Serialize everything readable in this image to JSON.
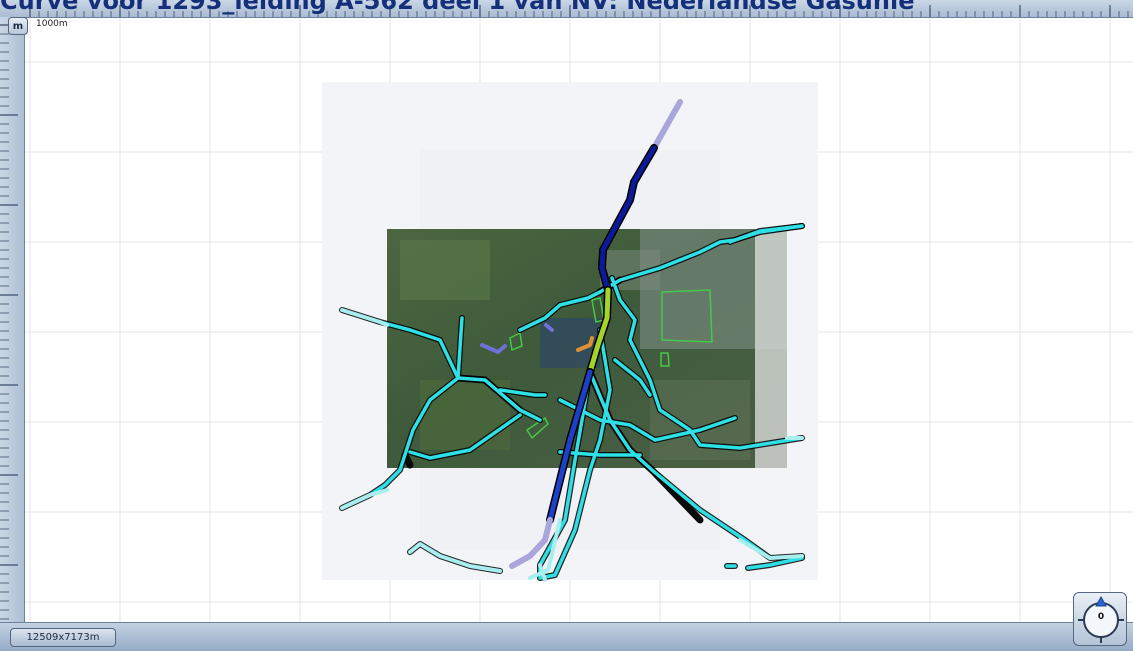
{
  "window": {
    "title": "Curve voor 1293_leiding A-562 deel 1 van NV: Nederlandse Gasunie"
  },
  "toolbar": {
    "unit_label": "m",
    "scale_label": "1000m"
  },
  "status": {
    "map_size": "12509x7173m"
  },
  "compass": {
    "heading": "0"
  },
  "colors": {
    "pipeline_cyan": "#2ee0e6",
    "pipeline_light": "#a8eeee",
    "pipeline_dark_blue": "#0a1a9a",
    "pipeline_medium_blue": "#1c40c8",
    "pipeline_faded": "#a9a6dc",
    "zone_green": "#45c848",
    "background": "#ffffff"
  },
  "icons": {
    "compass": "compass-icon",
    "north_arrow": "north-arrow-icon"
  }
}
